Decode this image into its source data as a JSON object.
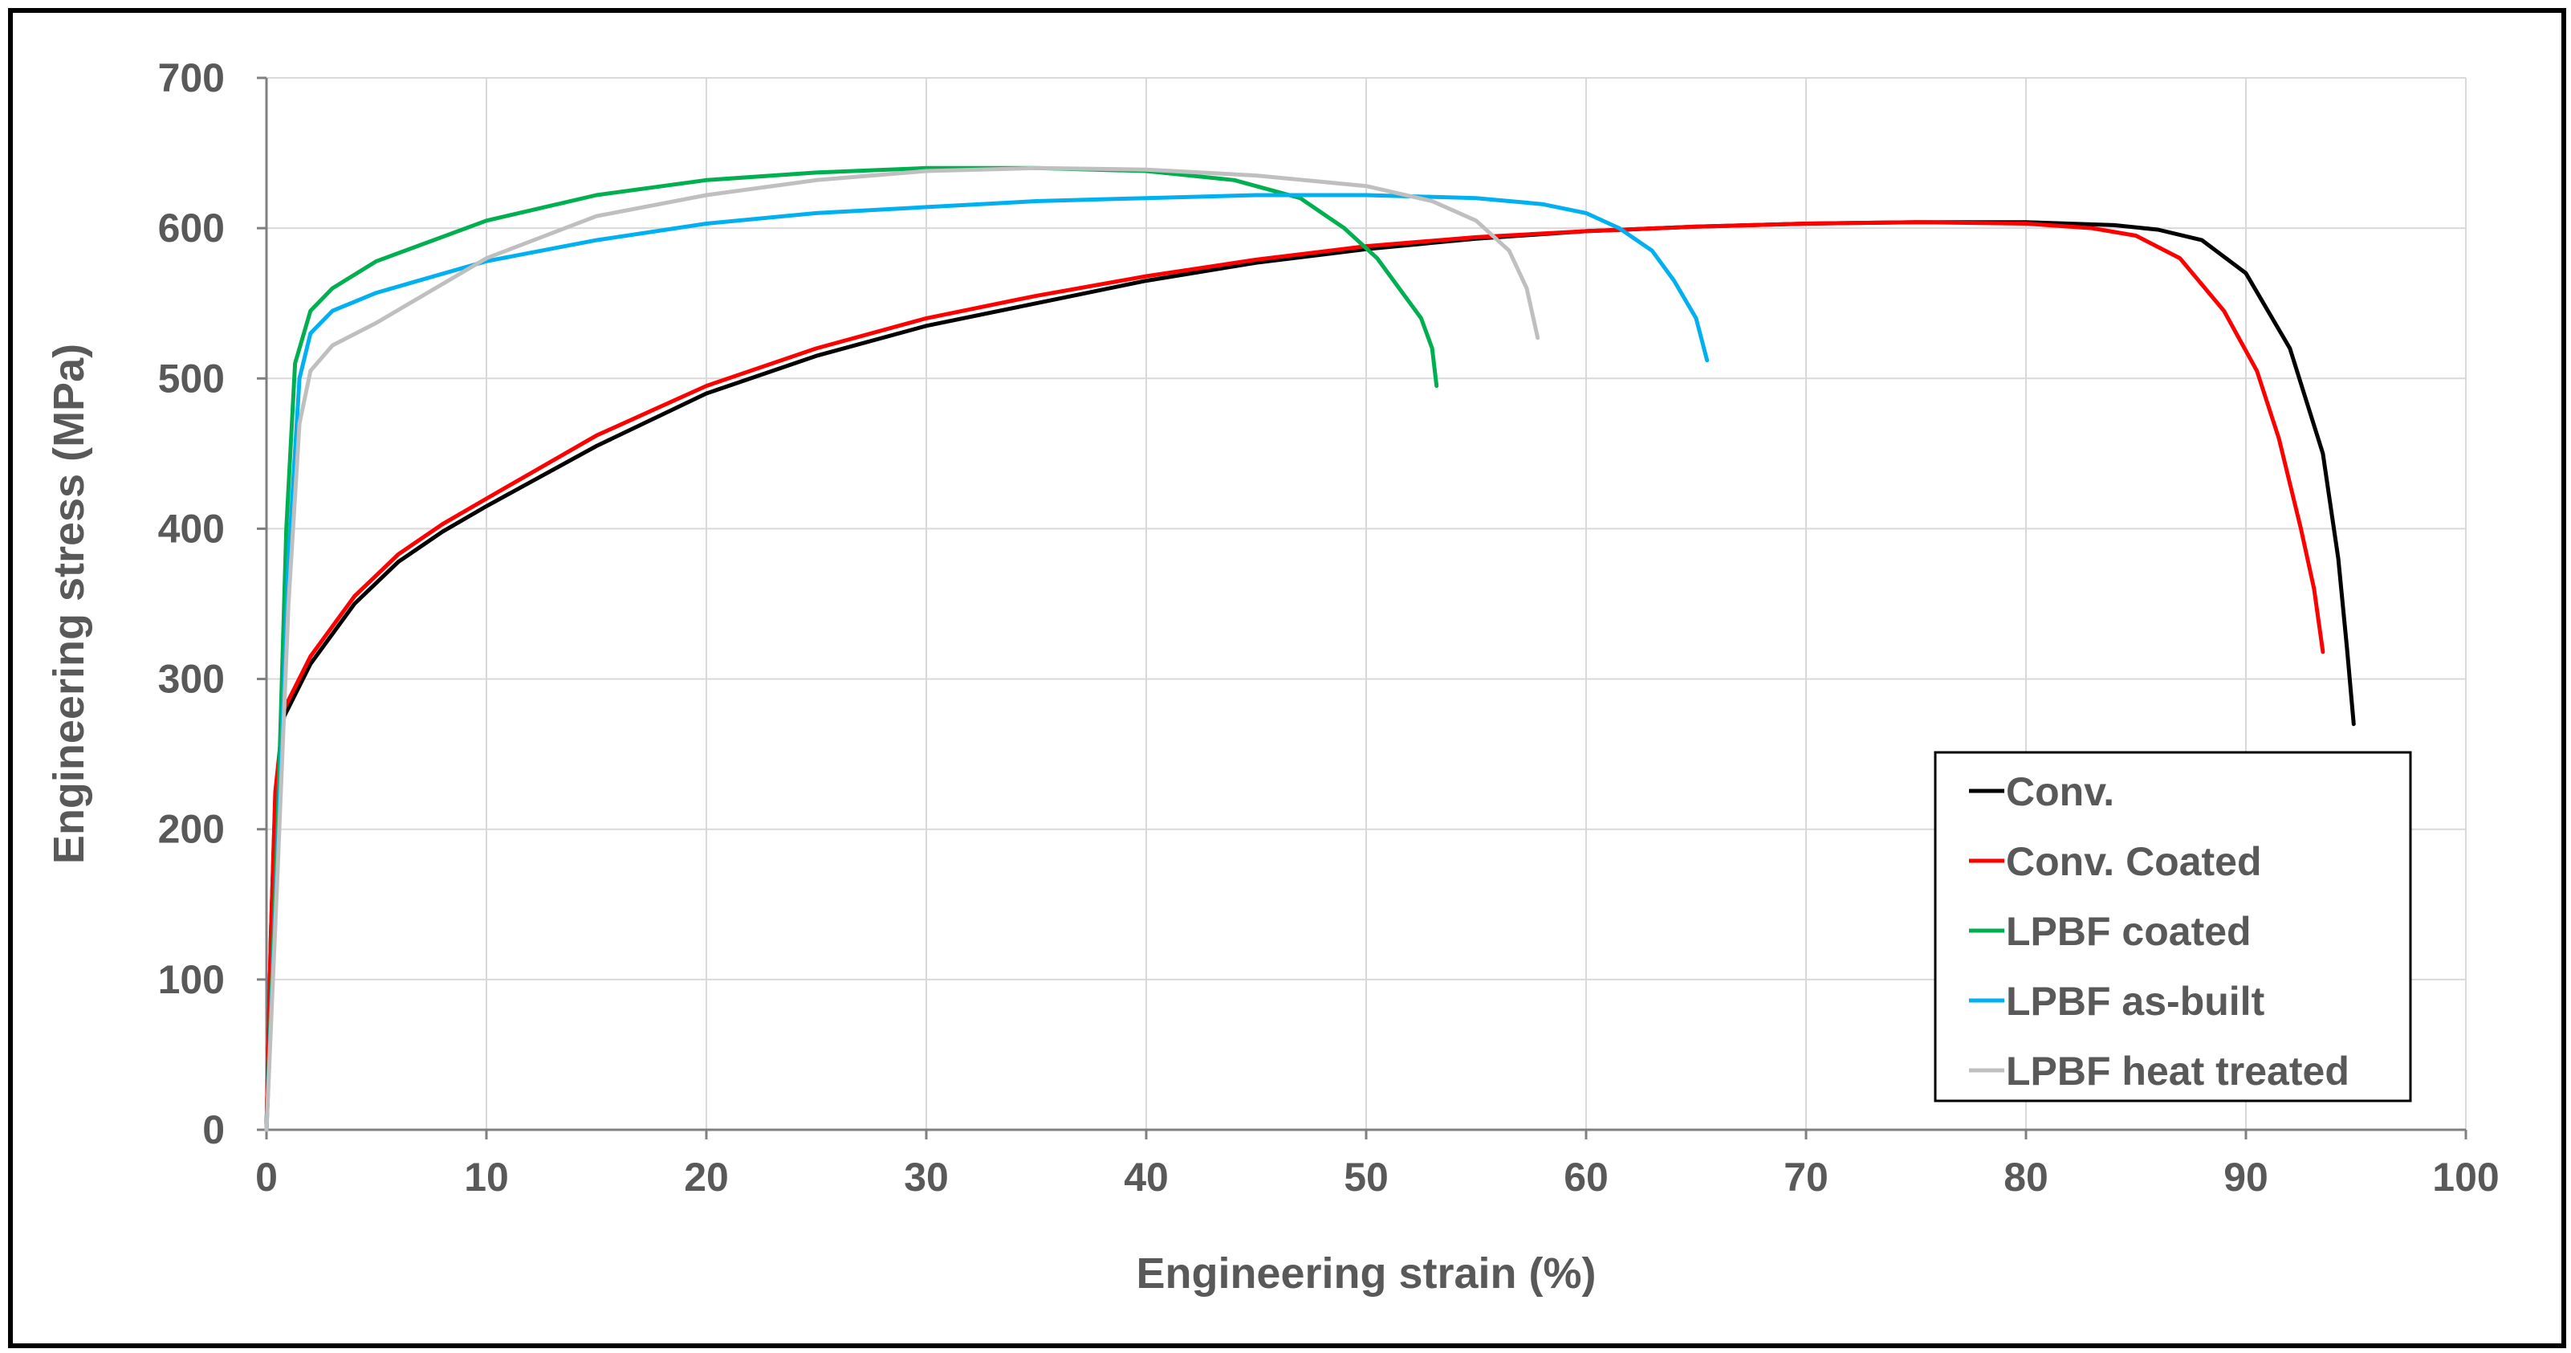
{
  "chart_data": {
    "type": "line",
    "title": "",
    "xlabel": "Engineering strain (%)",
    "ylabel": "Engineering stress (MPa)",
    "xlim": [
      0,
      100
    ],
    "ylim": [
      0,
      700
    ],
    "x_ticks": [
      0,
      10,
      20,
      30,
      40,
      50,
      60,
      70,
      80,
      90,
      100
    ],
    "y_ticks": [
      0,
      100,
      200,
      300,
      400,
      500,
      600,
      700
    ],
    "grid": true,
    "legend_position": "bottom-right",
    "series": [
      {
        "name": "Conv.",
        "color": "#000000",
        "points": [
          [
            0,
            0
          ],
          [
            0.2,
            130
          ],
          [
            0.4,
            220
          ],
          [
            0.8,
            275
          ],
          [
            2,
            310
          ],
          [
            4,
            350
          ],
          [
            6,
            378
          ],
          [
            8,
            398
          ],
          [
            10,
            415
          ],
          [
            15,
            455
          ],
          [
            20,
            490
          ],
          [
            25,
            515
          ],
          [
            30,
            535
          ],
          [
            35,
            550
          ],
          [
            40,
            565
          ],
          [
            45,
            577
          ],
          [
            50,
            586
          ],
          [
            55,
            593
          ],
          [
            60,
            598
          ],
          [
            65,
            601
          ],
          [
            70,
            603
          ],
          [
            75,
            604
          ],
          [
            80,
            604
          ],
          [
            84,
            602
          ],
          [
            86,
            599
          ],
          [
            88,
            592
          ],
          [
            90,
            570
          ],
          [
            92,
            520
          ],
          [
            93.5,
            450
          ],
          [
            94.2,
            380
          ],
          [
            94.6,
            320
          ],
          [
            94.9,
            270
          ]
        ]
      },
      {
        "name": "Conv. Coated",
        "color": "#ff0000",
        "points": [
          [
            0,
            0
          ],
          [
            0.2,
            130
          ],
          [
            0.4,
            225
          ],
          [
            0.8,
            280
          ],
          [
            2,
            315
          ],
          [
            4,
            355
          ],
          [
            6,
            383
          ],
          [
            8,
            403
          ],
          [
            10,
            420
          ],
          [
            15,
            462
          ],
          [
            20,
            495
          ],
          [
            25,
            520
          ],
          [
            30,
            540
          ],
          [
            35,
            555
          ],
          [
            40,
            568
          ],
          [
            45,
            579
          ],
          [
            50,
            588
          ],
          [
            55,
            594
          ],
          [
            60,
            598
          ],
          [
            65,
            601
          ],
          [
            70,
            603
          ],
          [
            75,
            604
          ],
          [
            80,
            603
          ],
          [
            83,
            600
          ],
          [
            85,
            595
          ],
          [
            87,
            580
          ],
          [
            89,
            545
          ],
          [
            90.5,
            505
          ],
          [
            91.5,
            460
          ],
          [
            92.5,
            400
          ],
          [
            93.1,
            360
          ],
          [
            93.5,
            318
          ]
        ]
      },
      {
        "name": "LPBF coated",
        "color": "#00b050",
        "points": [
          [
            0,
            0
          ],
          [
            0.5,
            200
          ],
          [
            0.9,
            400
          ],
          [
            1.3,
            510
          ],
          [
            2,
            545
          ],
          [
            3,
            560
          ],
          [
            5,
            578
          ],
          [
            10,
            605
          ],
          [
            15,
            622
          ],
          [
            20,
            632
          ],
          [
            25,
            637
          ],
          [
            30,
            640
          ],
          [
            35,
            640
          ],
          [
            40,
            638
          ],
          [
            44,
            632
          ],
          [
            47,
            620
          ],
          [
            49,
            600
          ],
          [
            50.5,
            580
          ],
          [
            51.5,
            560
          ],
          [
            52.5,
            540
          ],
          [
            53,
            520
          ],
          [
            53.2,
            495
          ]
        ]
      },
      {
        "name": "LPBF as-built",
        "color": "#00b0f0",
        "points": [
          [
            0,
            0
          ],
          [
            0.5,
            180
          ],
          [
            1,
            380
          ],
          [
            1.5,
            500
          ],
          [
            2,
            530
          ],
          [
            3,
            545
          ],
          [
            5,
            557
          ],
          [
            10,
            578
          ],
          [
            15,
            592
          ],
          [
            20,
            603
          ],
          [
            25,
            610
          ],
          [
            30,
            614
          ],
          [
            35,
            618
          ],
          [
            40,
            620
          ],
          [
            45,
            622
          ],
          [
            50,
            622
          ],
          [
            55,
            620
          ],
          [
            58,
            616
          ],
          [
            60,
            610
          ],
          [
            61.5,
            600
          ],
          [
            63,
            585
          ],
          [
            64,
            565
          ],
          [
            65,
            540
          ],
          [
            65.5,
            512
          ]
        ]
      },
      {
        "name": "LPBF heat treated",
        "color": "#bfbfbf",
        "points": [
          [
            0,
            0
          ],
          [
            0.5,
            170
          ],
          [
            1,
            350
          ],
          [
            1.5,
            470
          ],
          [
            2,
            505
          ],
          [
            3,
            522
          ],
          [
            5,
            537
          ],
          [
            10,
            580
          ],
          [
            15,
            608
          ],
          [
            20,
            622
          ],
          [
            25,
            632
          ],
          [
            30,
            638
          ],
          [
            35,
            640
          ],
          [
            40,
            639
          ],
          [
            45,
            635
          ],
          [
            50,
            628
          ],
          [
            53,
            618
          ],
          [
            55,
            605
          ],
          [
            56.5,
            585
          ],
          [
            57.3,
            560
          ],
          [
            57.8,
            527
          ]
        ]
      }
    ]
  }
}
